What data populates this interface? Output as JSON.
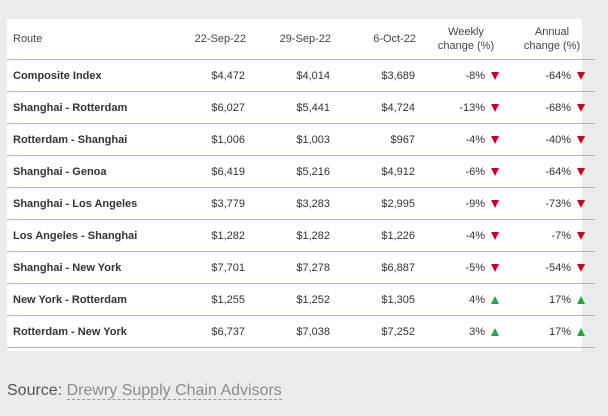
{
  "table": {
    "headers": {
      "route": "Route",
      "d1": "22-Sep-22",
      "d2": "29-Sep-22",
      "d3": "6-Oct-22",
      "weekly_line1": "Weekly",
      "weekly_line2": "change (%)",
      "annual_line1": "Annual",
      "annual_line2": "change (%)"
    },
    "rows": [
      {
        "route": "Composite Index",
        "d1": "$4,472",
        "d2": "$4,014",
        "d3": "$3,689",
        "weekly": "-8%",
        "weekly_dir": "down",
        "annual": "-64%",
        "annual_dir": "down"
      },
      {
        "route": "Shanghai - Rotterdam",
        "d1": "$6,027",
        "d2": "$5,441",
        "d3": "$4,724",
        "weekly": "-13%",
        "weekly_dir": "down",
        "annual": "-68%",
        "annual_dir": "down"
      },
      {
        "route": "Rotterdam - Shanghai",
        "d1": "$1,006",
        "d2": "$1,003",
        "d3": "$967",
        "weekly": "-4%",
        "weekly_dir": "down",
        "annual": "-40%",
        "annual_dir": "down"
      },
      {
        "route": "Shanghai - Genoa",
        "d1": "$6,419",
        "d2": "$5,216",
        "d3": "$4,912",
        "weekly": "-6%",
        "weekly_dir": "down",
        "annual": "-64%",
        "annual_dir": "down"
      },
      {
        "route": "Shanghai - Los Angeles",
        "d1": "$3,779",
        "d2": "$3,283",
        "d3": "$2,995",
        "weekly": "-9%",
        "weekly_dir": "down",
        "annual": "-73%",
        "annual_dir": "down"
      },
      {
        "route": "Los Angeles - Shanghai",
        "d1": "$1,282",
        "d2": "$1,282",
        "d3": "$1,226",
        "weekly": "-4%",
        "weekly_dir": "down",
        "annual": "-7%",
        "annual_dir": "down"
      },
      {
        "route": "Shanghai - New York",
        "d1": "$7,701",
        "d2": "$7,278",
        "d3": "$6,887",
        "weekly": "-5%",
        "weekly_dir": "down",
        "annual": "-54%",
        "annual_dir": "down"
      },
      {
        "route": "New York - Rotterdam",
        "d1": "$1,255",
        "d2": "$1,252",
        "d3": "$1,305",
        "weekly": "4%",
        "weekly_dir": "up",
        "annual": "17%",
        "annual_dir": "up"
      },
      {
        "route": "Rotterdam - New York",
        "d1": "$6,737",
        "d2": "$7,038",
        "d3": "$7,252",
        "weekly": "3%",
        "weekly_dir": "up",
        "annual": "17%",
        "annual_dir": "up"
      }
    ]
  },
  "source": {
    "label": "Source:",
    "link_text": "Drewry Supply Chain Advisors"
  },
  "colors": {
    "down": "#d0021b",
    "up": "#22a845",
    "rule": "#c9b37a"
  }
}
